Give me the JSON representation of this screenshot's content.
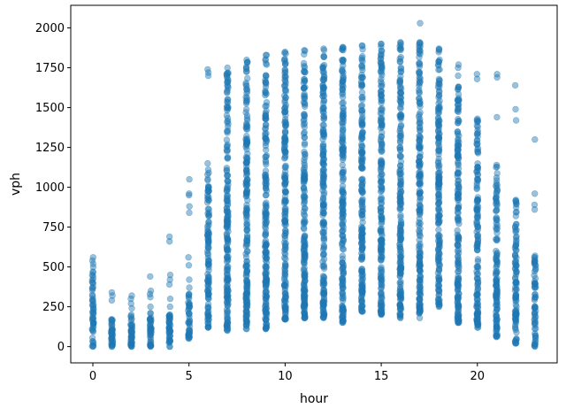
{
  "chart_data": {
    "type": "scatter",
    "title": "",
    "xlabel": "hour",
    "ylabel": "vph",
    "xlim": [
      -1.15,
      24.15
    ],
    "ylim": [
      -102,
      2142
    ],
    "x_ticks": [
      0,
      5,
      10,
      15,
      20
    ],
    "y_ticks": [
      0,
      250,
      500,
      750,
      1000,
      1250,
      1500,
      1750,
      2000
    ],
    "x_tick_labels": [
      "0",
      "5",
      "10",
      "15",
      "20"
    ],
    "y_tick_labels": [
      "0",
      "250",
      "500",
      "750",
      "1000",
      "1250",
      "1500",
      "1750",
      "2000"
    ],
    "grid": false,
    "marker_color": "#1f77b4",
    "marker_alpha": 0.45,
    "series": [
      {
        "values_by_hour": [
          {
            "x": 0,
            "core": [
              0,
              470
            ],
            "outliers": [
              500,
              520,
              540,
              560
            ]
          },
          {
            "x": 1,
            "core": [
              0,
              170
            ],
            "outliers": [
              290,
              320,
              340
            ]
          },
          {
            "x": 2,
            "core": [
              0,
              200
            ],
            "outliers": [
              240,
              270,
              300,
              320
            ]
          },
          {
            "x": 3,
            "core": [
              0,
              210
            ],
            "outliers": [
              250,
              310,
              330,
              350,
              440
            ]
          },
          {
            "x": 4,
            "core": [
              0,
              200
            ],
            "outliers": [
              250,
              300,
              390,
              420,
              450,
              660,
              690
            ]
          },
          {
            "x": 5,
            "core": [
              50,
              330
            ],
            "outliers": [
              370,
              420,
              510,
              560,
              840,
              880,
              950,
              960,
              1050
            ]
          },
          {
            "x": 6,
            "core": [
              120,
              1110
            ],
            "outliers": [
              1150,
              1700,
              1720,
              1740
            ]
          },
          {
            "x": 7,
            "core": [
              100,
              1750
            ],
            "outliers": []
          },
          {
            "x": 8,
            "core": [
              110,
              1800
            ],
            "outliers": []
          },
          {
            "x": 9,
            "core": [
              110,
              1830
            ],
            "outliers": []
          },
          {
            "x": 10,
            "core": [
              170,
              1850
            ],
            "outliers": []
          },
          {
            "x": 11,
            "core": [
              180,
              1860
            ],
            "outliers": []
          },
          {
            "x": 12,
            "core": [
              180,
              1870
            ],
            "outliers": []
          },
          {
            "x": 13,
            "core": [
              150,
              1880
            ],
            "outliers": []
          },
          {
            "x": 14,
            "core": [
              220,
              1890
            ],
            "outliers": []
          },
          {
            "x": 15,
            "core": [
              200,
              1900
            ],
            "outliers": []
          },
          {
            "x": 16,
            "core": [
              180,
              1910
            ],
            "outliers": []
          },
          {
            "x": 17,
            "core": [
              180,
              1910
            ],
            "outliers": [
              2030
            ]
          },
          {
            "x": 18,
            "core": [
              250,
              1870
            ],
            "outliers": []
          },
          {
            "x": 19,
            "core": [
              150,
              1700
            ],
            "outliers": [
              1750,
              1770
            ]
          },
          {
            "x": 20,
            "core": [
              120,
              1430
            ],
            "outliers": [
              1680,
              1710
            ]
          },
          {
            "x": 21,
            "core": [
              60,
              1140
            ],
            "outliers": [
              1440,
              1690,
              1710
            ]
          },
          {
            "x": 22,
            "core": [
              20,
              920
            ],
            "outliers": [
              1420,
              1490,
              1640
            ]
          },
          {
            "x": 23,
            "core": [
              0,
              570
            ],
            "outliers": [
              860,
              890,
              960,
              1300
            ]
          }
        ]
      }
    ]
  }
}
